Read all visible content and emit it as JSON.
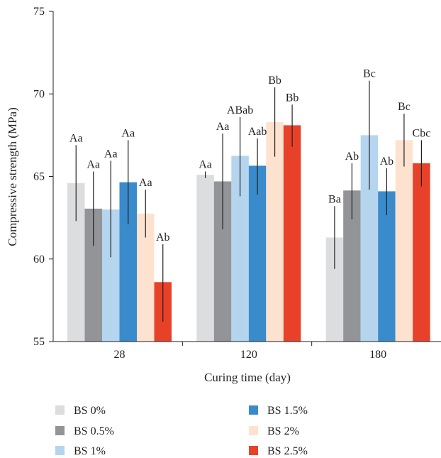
{
  "chart_data": {
    "type": "bar",
    "xlabel": "Curing time (day)",
    "ylabel": "Compressive strength (MPa)",
    "ylim": [
      55,
      75
    ],
    "yticks": [
      55,
      60,
      65,
      70,
      75
    ],
    "categories": [
      "28",
      "120",
      "180"
    ],
    "grid": false,
    "legend_position": "bottom",
    "series": [
      {
        "name": "BS 0%",
        "color": "#dcdddf",
        "values": [
          64.6,
          65.1,
          61.3
        ],
        "err_low": [
          62.3,
          64.9,
          59.4
        ],
        "err_high": [
          66.9,
          65.3,
          63.2
        ],
        "labels": [
          "Aa",
          "Aa",
          "Ba"
        ]
      },
      {
        "name": "BS 0.5%",
        "color": "#929497",
        "values": [
          63.05,
          64.7,
          64.15
        ],
        "err_low": [
          60.8,
          61.8,
          62.4
        ],
        "err_high": [
          65.3,
          67.6,
          65.8
        ],
        "labels": [
          "Aa",
          "Aa",
          "Ab"
        ]
      },
      {
        "name": "BS 1%",
        "color": "#b5d5ef",
        "values": [
          63.0,
          66.25,
          67.5
        ],
        "err_low": [
          60.1,
          63.8,
          64.2
        ],
        "err_high": [
          65.95,
          68.6,
          70.8
        ],
        "labels": [
          "Aa",
          "ABab",
          "Bc"
        ]
      },
      {
        "name": "BS 1.5%",
        "color": "#3a8bcb",
        "values": [
          64.65,
          65.65,
          64.1
        ],
        "err_low": [
          62.1,
          63.9,
          62.65
        ],
        "err_high": [
          67.2,
          67.3,
          65.5
        ],
        "labels": [
          "Aa",
          "Aab",
          "Ab"
        ]
      },
      {
        "name": "BS 2%",
        "color": "#fde2cf",
        "values": [
          62.75,
          68.3,
          67.2
        ],
        "err_low": [
          61.3,
          66.2,
          65.6
        ],
        "err_high": [
          64.2,
          70.4,
          68.8
        ],
        "labels": [
          "Aa",
          "Bb",
          "Bc"
        ]
      },
      {
        "name": "BS 2.5%",
        "color": "#e8412a",
        "values": [
          58.6,
          68.1,
          65.8
        ],
        "err_low": [
          56.2,
          66.8,
          64.4
        ],
        "err_high": [
          60.9,
          69.35,
          67.2
        ],
        "labels": [
          "Ab",
          "Bb",
          "Cbc"
        ]
      }
    ]
  }
}
